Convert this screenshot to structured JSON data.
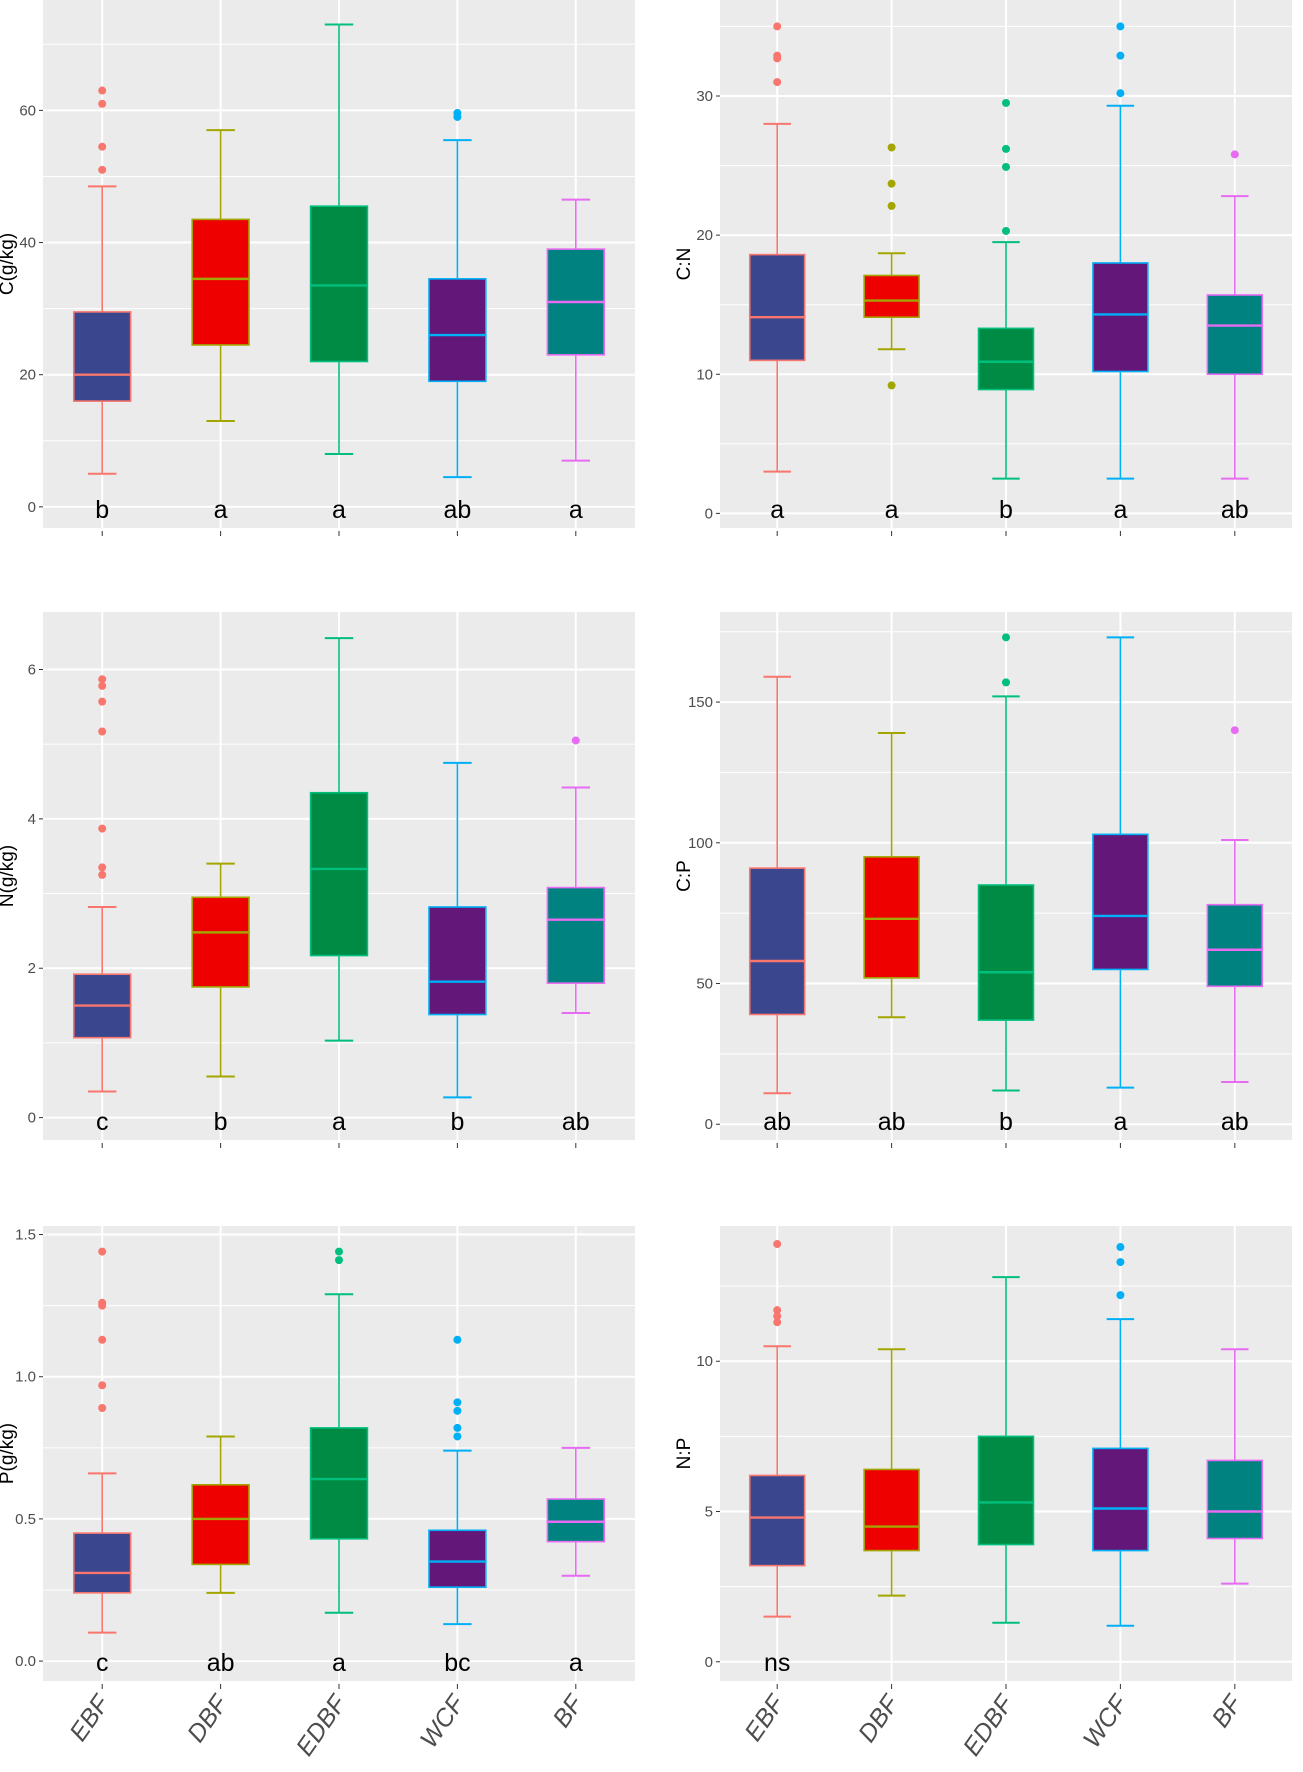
{
  "chart_data": [
    {
      "type": "box",
      "ylabel": "C(g/kg)",
      "ylim": [
        -3.2,
        76.7
      ],
      "yticks": [
        0,
        20,
        40,
        60
      ],
      "categories": [
        "EBF",
        "DBF",
        "EDBF",
        "WCF",
        "BF"
      ],
      "boxes": [
        {
          "min": 5,
          "q1": 16,
          "median": 20,
          "q3": 29.5,
          "max": 48.5,
          "outliers": [
            51,
            54.5,
            61,
            63
          ]
        },
        {
          "min": 13,
          "q1": 24.5,
          "median": 34.5,
          "q3": 43.5,
          "max": 57,
          "outliers": []
        },
        {
          "min": 8,
          "q1": 22,
          "median": 33.5,
          "q3": 45.5,
          "max": 73,
          "outliers": []
        },
        {
          "min": 4.5,
          "q1": 19,
          "median": 26,
          "q3": 34.5,
          "max": 55.5,
          "outliers": [
            59,
            59.6
          ]
        },
        {
          "min": 7,
          "q1": 23,
          "median": 31,
          "q3": 39,
          "max": 46.5,
          "outliers": []
        }
      ],
      "letters": [
        "b",
        "a",
        "a",
        "ab",
        "a"
      ],
      "show_xlabels": false
    },
    {
      "type": "box",
      "ylabel": "C:N",
      "ylim": [
        -1.05,
        36.9
      ],
      "yticks": [
        0,
        10,
        20,
        30
      ],
      "categories": [
        "EBF",
        "DBF",
        "EDBF",
        "WCF",
        "BF"
      ],
      "boxes": [
        {
          "min": 3,
          "q1": 11,
          "median": 14.1,
          "q3": 18.6,
          "max": 28,
          "outliers": [
            31,
            32.7,
            32.9,
            35
          ]
        },
        {
          "min": 11.8,
          "q1": 14.1,
          "median": 15.3,
          "q3": 17.1,
          "max": 18.7,
          "outliers": [
            9.2,
            22.1,
            23.7,
            26.3
          ]
        },
        {
          "min": 2.5,
          "q1": 8.9,
          "median": 10.9,
          "q3": 13.3,
          "max": 19.5,
          "outliers": [
            20.3,
            24.9,
            26.2,
            29.5
          ]
        },
        {
          "min": 2.5,
          "q1": 10.2,
          "median": 14.3,
          "q3": 18,
          "max": 29.3,
          "outliers": [
            30.2,
            32.9,
            35
          ]
        },
        {
          "min": 2.5,
          "q1": 10,
          "median": 13.5,
          "q3": 15.7,
          "max": 22.8,
          "outliers": [
            25.8
          ]
        }
      ],
      "letters": [
        "a",
        "a",
        "b",
        "a",
        "ab"
      ],
      "show_xlabels": false
    },
    {
      "type": "box",
      "ylabel": "N(g/kg)",
      "ylim": [
        -0.3,
        6.77
      ],
      "yticks": [
        0,
        2,
        4,
        6
      ],
      "categories": [
        "EBF",
        "DBF",
        "EDBF",
        "WCF",
        "BF"
      ],
      "boxes": [
        {
          "min": 0.35,
          "q1": 1.07,
          "median": 1.5,
          "q3": 1.92,
          "max": 2.82,
          "outliers": [
            3.25,
            3.35,
            3.87,
            5.17,
            5.57,
            5.78,
            5.87
          ]
        },
        {
          "min": 0.55,
          "q1": 1.75,
          "median": 2.48,
          "q3": 2.95,
          "max": 3.4,
          "outliers": []
        },
        {
          "min": 1.03,
          "q1": 2.17,
          "median": 3.33,
          "q3": 4.35,
          "max": 6.42,
          "outliers": []
        },
        {
          "min": 0.27,
          "q1": 1.38,
          "median": 1.82,
          "q3": 2.82,
          "max": 4.75,
          "outliers": []
        },
        {
          "min": 1.4,
          "q1": 1.8,
          "median": 2.65,
          "q3": 3.08,
          "max": 4.42,
          "outliers": [
            5.05
          ]
        }
      ],
      "letters": [
        "c",
        "b",
        "a",
        "b",
        "ab"
      ],
      "show_xlabels": false
    },
    {
      "type": "box",
      "ylabel": "C:P",
      "ylim": [
        -5.6,
        182
      ],
      "yticks": [
        0,
        50,
        100,
        150
      ],
      "categories": [
        "EBF",
        "DBF",
        "EDBF",
        "WCF",
        "BF"
      ],
      "boxes": [
        {
          "min": 11,
          "q1": 39,
          "median": 58,
          "q3": 91,
          "max": 159,
          "outliers": []
        },
        {
          "min": 38,
          "q1": 52,
          "median": 73,
          "q3": 95,
          "max": 139,
          "outliers": []
        },
        {
          "min": 12,
          "q1": 37,
          "median": 54,
          "q3": 85,
          "max": 152,
          "outliers": [
            157,
            173
          ]
        },
        {
          "min": 13,
          "q1": 55,
          "median": 74,
          "q3": 103,
          "max": 173,
          "outliers": []
        },
        {
          "min": 15,
          "q1": 49,
          "median": 62,
          "q3": 78,
          "max": 101,
          "outliers": [
            140
          ]
        }
      ],
      "letters": [
        "ab",
        "ab",
        "b",
        "a",
        "ab"
      ],
      "show_xlabels": false
    },
    {
      "type": "box",
      "ylabel": "P(g/kg)",
      "ylim": [
        -0.07,
        1.53
      ],
      "yticks": [
        0.0,
        0.5,
        1.0,
        1.5
      ],
      "ytick_labels": [
        "0.0",
        "0.5",
        "1.0",
        "1.5"
      ],
      "categories": [
        "EBF",
        "DBF",
        "EDBF",
        "WCF",
        "BF"
      ],
      "boxes": [
        {
          "min": 0.1,
          "q1": 0.24,
          "median": 0.31,
          "q3": 0.45,
          "max": 0.66,
          "outliers": [
            0.89,
            0.97,
            1.13,
            1.25,
            1.26,
            1.44
          ]
        },
        {
          "min": 0.24,
          "q1": 0.34,
          "median": 0.5,
          "q3": 0.62,
          "max": 0.79,
          "outliers": []
        },
        {
          "min": 0.17,
          "q1": 0.43,
          "median": 0.64,
          "q3": 0.82,
          "max": 1.29,
          "outliers": [
            1.41,
            1.44
          ]
        },
        {
          "min": 0.13,
          "q1": 0.26,
          "median": 0.35,
          "q3": 0.46,
          "max": 0.74,
          "outliers": [
            0.79,
            0.82,
            0.88,
            0.91,
            1.13
          ]
        },
        {
          "min": 0.3,
          "q1": 0.42,
          "median": 0.49,
          "q3": 0.57,
          "max": 0.75,
          "outliers": []
        }
      ],
      "letters": [
        "c",
        "ab",
        "a",
        "bc",
        "a"
      ],
      "show_xlabels": true
    },
    {
      "type": "box",
      "ylabel": "N:P",
      "ylim": [
        -0.64,
        14.5
      ],
      "yticks": [
        0,
        5,
        10
      ],
      "categories": [
        "EBF",
        "DBF",
        "EDBF",
        "WCF",
        "BF"
      ],
      "boxes": [
        {
          "min": 1.5,
          "q1": 3.2,
          "median": 4.8,
          "q3": 6.2,
          "max": 10.5,
          "outliers": [
            11.3,
            11.5,
            11.7,
            13.9
          ]
        },
        {
          "min": 2.2,
          "q1": 3.7,
          "median": 4.5,
          "q3": 6.4,
          "max": 10.4,
          "outliers": []
        },
        {
          "min": 1.3,
          "q1": 3.9,
          "median": 5.3,
          "q3": 7.5,
          "max": 12.8,
          "outliers": []
        },
        {
          "min": 1.2,
          "q1": 3.7,
          "median": 5.1,
          "q3": 7.1,
          "max": 11.4,
          "outliers": [
            12.2,
            13.3,
            13.8
          ]
        },
        {
          "min": 2.6,
          "q1": 4.1,
          "median": 5.0,
          "q3": 6.7,
          "max": 10.4,
          "outliers": []
        }
      ],
      "letters": [
        "ns",
        "",
        "",
        "",
        ""
      ],
      "show_xlabels": true
    }
  ],
  "colors": {
    "fills": [
      "#3a478f",
      "#ee0000",
      "#008b45",
      "#631879",
      "#008280"
    ],
    "lines": [
      "#F8766D",
      "#A3A500",
      "#00BF7D",
      "#00B0F6",
      "#E76BF3"
    ],
    "panel_bg": "#ebebeb",
    "grid": "#ffffff"
  }
}
